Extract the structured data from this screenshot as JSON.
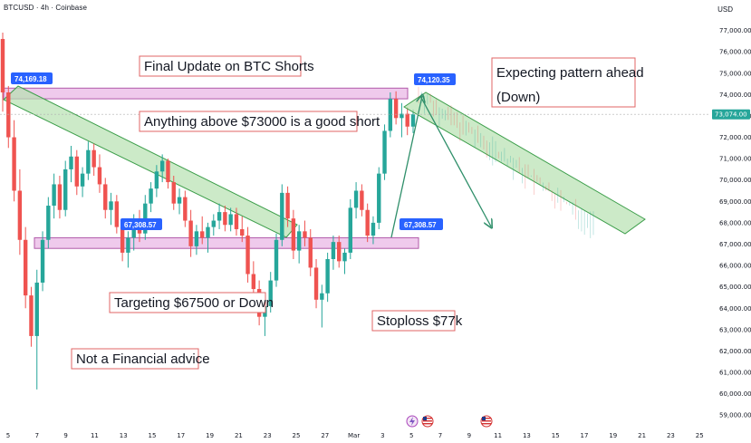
{
  "header": {
    "symbol_line": "BTCUSD · 4h · Coinbase",
    "currency": "USD"
  },
  "colors": {
    "up": "#26a69a",
    "down": "#ef5350",
    "channel_fill": "#b7e1b0",
    "channel_stroke": "#3c9e4a",
    "zone_fill": "#e9b8e6",
    "zone_stroke": "#b05aa9",
    "label_blue": "#2962ff",
    "arrow": "#2f8f6a"
  },
  "chart_data": {
    "type": "candlestick",
    "symbol": "BTCUSD",
    "timeframe": "4h",
    "exchange": "Coinbase",
    "currency": "USD",
    "ylim": [
      58500,
      78000
    ],
    "y_ticks": [
      "77,000.00",
      "76,000.00",
      "75,000.00",
      "74,000.00",
      "73,000.00",
      "72,000.00",
      "71,000.00",
      "70,000.00",
      "69,000.00",
      "68,000.00",
      "67,000.00",
      "66,000.00",
      "65,000.00",
      "64,000.00",
      "63,000.00",
      "62,000.00",
      "61,000.00",
      "60,000.00",
      "59,000.00"
    ],
    "x_ticks": [
      "5",
      "7",
      "9",
      "11",
      "13",
      "15",
      "17",
      "19",
      "21",
      "23",
      "25",
      "27",
      "Mar",
      "3",
      "5",
      "7",
      "9",
      "11",
      "13",
      "15",
      "17",
      "19",
      "21",
      "23",
      "25"
    ],
    "current_price_label": "73,074.00",
    "current_price": 73074,
    "price_labels": [
      {
        "text": "74,169.18",
        "value": 74169.18
      },
      {
        "text": "74,120.35",
        "value": 74120.35
      },
      {
        "text": "67,308.57",
        "value": 67308.57
      },
      {
        "text": "67,308.57",
        "value": 67308.57
      }
    ],
    "zones": [
      {
        "name": "resistance",
        "from": 73800,
        "to": 74300
      },
      {
        "name": "support",
        "from": 66800,
        "to": 67300
      }
    ],
    "annotations": [
      "Final Update on BTC Shorts",
      "Anything above $73000 is a good short",
      "Expecting pattern ahead",
      "(Down)",
      "Targeting $67500 or Down",
      "Stoploss $77k",
      "Not a Financial advice"
    ],
    "candles": [
      {
        "o": 76600,
        "h": 76900,
        "l": 73200,
        "c": 74100
      },
      {
        "o": 74100,
        "h": 74400,
        "l": 71500,
        "c": 72000
      },
      {
        "o": 72000,
        "h": 72800,
        "l": 69000,
        "c": 69500
      },
      {
        "o": 69500,
        "h": 70500,
        "l": 66500,
        "c": 67200
      },
      {
        "o": 67200,
        "h": 67800,
        "l": 64000,
        "c": 64600
      },
      {
        "o": 64600,
        "h": 65000,
        "l": 62200,
        "c": 62700
      },
      {
        "o": 62700,
        "h": 65800,
        "l": 60200,
        "c": 65200
      },
      {
        "o": 65200,
        "h": 67600,
        "l": 64800,
        "c": 67200
      },
      {
        "o": 67200,
        "h": 69200,
        "l": 66800,
        "c": 68800
      },
      {
        "o": 68800,
        "h": 70300,
        "l": 68200,
        "c": 69800
      },
      {
        "o": 69800,
        "h": 70200,
        "l": 68200,
        "c": 68600
      },
      {
        "o": 68600,
        "h": 70900,
        "l": 68300,
        "c": 70500
      },
      {
        "o": 70500,
        "h": 71600,
        "l": 69900,
        "c": 71100
      },
      {
        "o": 71100,
        "h": 71400,
        "l": 69300,
        "c": 69700
      },
      {
        "o": 69700,
        "h": 70600,
        "l": 69200,
        "c": 70300
      },
      {
        "o": 70300,
        "h": 71800,
        "l": 70000,
        "c": 71400
      },
      {
        "o": 71400,
        "h": 71700,
        "l": 70200,
        "c": 70600
      },
      {
        "o": 70600,
        "h": 71200,
        "l": 69400,
        "c": 69800
      },
      {
        "o": 69800,
        "h": 70100,
        "l": 68200,
        "c": 68600
      },
      {
        "o": 68600,
        "h": 69400,
        "l": 67900,
        "c": 69000
      },
      {
        "o": 69000,
        "h": 69300,
        "l": 67500,
        "c": 67800
      },
      {
        "o": 67800,
        "h": 68200,
        "l": 66200,
        "c": 66600
      },
      {
        "o": 66600,
        "h": 67600,
        "l": 65900,
        "c": 67300
      },
      {
        "o": 67300,
        "h": 68400,
        "l": 66700,
        "c": 68000
      },
      {
        "o": 68000,
        "h": 68600,
        "l": 67100,
        "c": 67500
      },
      {
        "o": 67500,
        "h": 69300,
        "l": 67200,
        "c": 68900
      },
      {
        "o": 68900,
        "h": 69900,
        "l": 68500,
        "c": 69600
      },
      {
        "o": 69600,
        "h": 70700,
        "l": 69200,
        "c": 70400
      },
      {
        "o": 70400,
        "h": 71200,
        "l": 69900,
        "c": 70900
      },
      {
        "o": 70900,
        "h": 71000,
        "l": 69600,
        "c": 69900
      },
      {
        "o": 69900,
        "h": 70200,
        "l": 68600,
        "c": 68900
      },
      {
        "o": 68900,
        "h": 69600,
        "l": 68400,
        "c": 69200
      },
      {
        "o": 69200,
        "h": 69500,
        "l": 67800,
        "c": 68100
      },
      {
        "o": 68100,
        "h": 68600,
        "l": 66400,
        "c": 66900
      },
      {
        "o": 66900,
        "h": 67900,
        "l": 66500,
        "c": 67600
      },
      {
        "o": 67600,
        "h": 68300,
        "l": 67000,
        "c": 67300
      },
      {
        "o": 67300,
        "h": 68000,
        "l": 66600,
        "c": 67800
      },
      {
        "o": 67800,
        "h": 68400,
        "l": 67400,
        "c": 68100
      },
      {
        "o": 68100,
        "h": 68900,
        "l": 67700,
        "c": 68500
      },
      {
        "o": 68500,
        "h": 68800,
        "l": 67600,
        "c": 67900
      },
      {
        "o": 67900,
        "h": 68700,
        "l": 67600,
        "c": 68400
      },
      {
        "o": 68400,
        "h": 68700,
        "l": 67400,
        "c": 67700
      },
      {
        "o": 67700,
        "h": 68300,
        "l": 67100,
        "c": 67400
      },
      {
        "o": 67400,
        "h": 67800,
        "l": 65200,
        "c": 65600
      },
      {
        "o": 65600,
        "h": 66200,
        "l": 64500,
        "c": 64900
      },
      {
        "o": 64900,
        "h": 65300,
        "l": 63200,
        "c": 63600
      },
      {
        "o": 63600,
        "h": 64500,
        "l": 62700,
        "c": 64100
      },
      {
        "o": 64100,
        "h": 65700,
        "l": 63800,
        "c": 65300
      },
      {
        "o": 65300,
        "h": 67500,
        "l": 65000,
        "c": 67200
      },
      {
        "o": 67200,
        "h": 69800,
        "l": 66900,
        "c": 69400
      },
      {
        "o": 69400,
        "h": 69700,
        "l": 67800,
        "c": 68200
      },
      {
        "o": 68200,
        "h": 68600,
        "l": 66300,
        "c": 66700
      },
      {
        "o": 66700,
        "h": 67900,
        "l": 66100,
        "c": 67600
      },
      {
        "o": 67600,
        "h": 68100,
        "l": 66900,
        "c": 67300
      },
      {
        "o": 67300,
        "h": 67700,
        "l": 65500,
        "c": 65900
      },
      {
        "o": 65900,
        "h": 66300,
        "l": 64000,
        "c": 64400
      },
      {
        "o": 64400,
        "h": 65100,
        "l": 63100,
        "c": 64700
      },
      {
        "o": 64700,
        "h": 66600,
        "l": 64300,
        "c": 66300
      },
      {
        "o": 66300,
        "h": 67400,
        "l": 65800,
        "c": 67100
      },
      {
        "o": 67100,
        "h": 67400,
        "l": 65900,
        "c": 66200
      },
      {
        "o": 66200,
        "h": 66800,
        "l": 65600,
        "c": 66600
      },
      {
        "o": 66600,
        "h": 69100,
        "l": 66300,
        "c": 68700
      },
      {
        "o": 68700,
        "h": 69900,
        "l": 68200,
        "c": 69500
      },
      {
        "o": 69500,
        "h": 69800,
        "l": 68300,
        "c": 68600
      },
      {
        "o": 68600,
        "h": 68900,
        "l": 67100,
        "c": 67400
      },
      {
        "o": 67400,
        "h": 68300,
        "l": 67000,
        "c": 68000
      },
      {
        "o": 68000,
        "h": 70600,
        "l": 67700,
        "c": 70300
      },
      {
        "o": 70300,
        "h": 72600,
        "l": 70000,
        "c": 72300
      },
      {
        "o": 72300,
        "h": 74100,
        "l": 72000,
        "c": 73800
      },
      {
        "o": 73800,
        "h": 74150,
        "l": 72600,
        "c": 72900
      },
      {
        "o": 72900,
        "h": 73600,
        "l": 72000,
        "c": 73100
      },
      {
        "o": 73100,
        "h": 73400,
        "l": 72100,
        "c": 72500
      },
      {
        "o": 72500,
        "h": 73300,
        "l": 72200,
        "c": 73074
      }
    ],
    "projection_trend": {
      "from": 74100,
      "to": 68000,
      "noise": 900
    }
  }
}
